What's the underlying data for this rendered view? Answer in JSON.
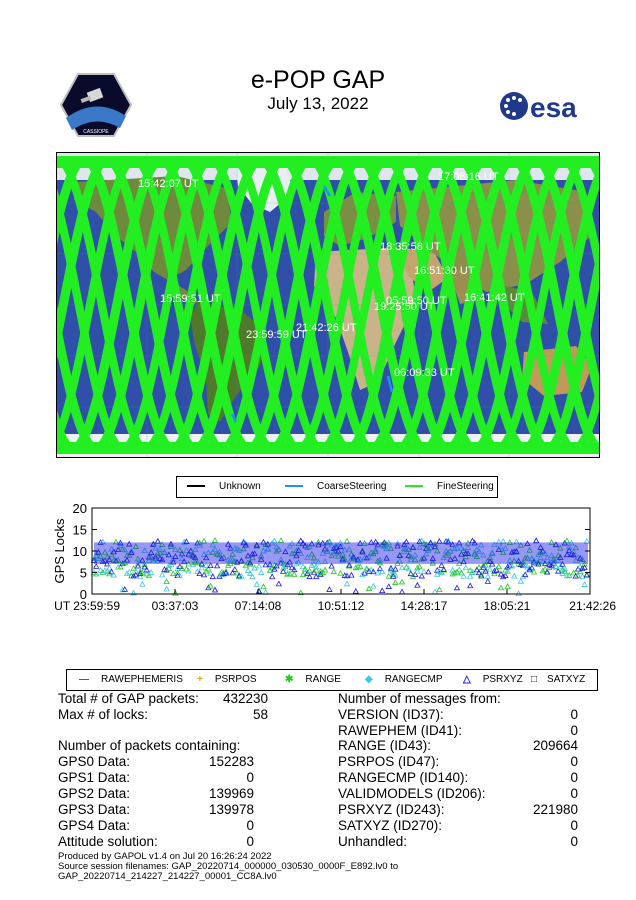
{
  "header": {
    "title": "e-POP GAP",
    "date": "July 13, 2022",
    "left_logo_text": "CASSIOPE",
    "right_logo_text": "esa"
  },
  "colors": {
    "fine": "#22ee22",
    "coarse": "#1e90ff",
    "unknown": "#000000",
    "gps_blue": "#1a1ae6",
    "gps_green": "#22cc22",
    "gps_cyan": "#40c8e0",
    "ocean": "#2f4fa8",
    "land": "#7f8f3a"
  },
  "map": {
    "time_labels": [
      "15:42:07 UT",
      "17:08:16 UT",
      "18:35:58 UT",
      "16:51:30 UT",
      "15:59:51 UT",
      "16:41:42 UT",
      "05:59:50 UT",
      "19:25:50 UT",
      "21:42:26 UT",
      "23:59:59 UT",
      "06:09:33 UT"
    ]
  },
  "legend_steering": [
    "Unknown",
    "CoarseSteering",
    "FineSteering"
  ],
  "chart_data": {
    "type": "scatter",
    "title": "",
    "ylabel": "GPS Locks",
    "xlabel": "",
    "x_tick_labels": [
      "UT 23:59:59",
      "03:37:03",
      "07:14:08",
      "10:51:12",
      "14:28:17",
      "18:05:21",
      "21:42:26"
    ],
    "y_ticks": [
      0,
      5,
      10,
      15,
      20
    ],
    "ylim": [
      0,
      20
    ],
    "series": [
      {
        "name": "RAWEPHEMERIS",
        "symbol": "line"
      },
      {
        "name": "PSRPOS",
        "symbol": "plus"
      },
      {
        "name": "RANGE",
        "symbol": "x"
      },
      {
        "name": "RANGECMP",
        "symbol": "diamond"
      },
      {
        "name": "PSRXYZ",
        "symbol": "triangle"
      },
      {
        "name": "SATXYZ",
        "symbol": "square"
      }
    ],
    "band": {
      "typical_low": 4,
      "typical_high": 12.5,
      "dips_to": 0
    }
  },
  "stats_left": {
    "total_label": "Total # of GAP packets:",
    "total_value": "432230",
    "maxlocks_label": "Max # of locks:",
    "maxlocks_value": "58",
    "containing_label": "Number of packets containing:",
    "rows": [
      {
        "label": "GPS0 Data:",
        "value": "152283"
      },
      {
        "label": "GPS1 Data:",
        "value": "0"
      },
      {
        "label": "GPS2 Data:",
        "value": "139969"
      },
      {
        "label": "GPS3 Data:",
        "value": "139978"
      },
      {
        "label": "GPS4 Data:",
        "value": "0"
      },
      {
        "label": "Attitude solution:",
        "value": "0"
      }
    ]
  },
  "stats_right": {
    "heading": "Number of messages from:",
    "rows": [
      {
        "label": "VERSION (ID37):",
        "value": "0"
      },
      {
        "label": "RAWEPHEM (ID41):",
        "value": "0"
      },
      {
        "label": "RANGE (ID43):",
        "value": "209664"
      },
      {
        "label": "PSRPOS (ID47):",
        "value": "0"
      },
      {
        "label": "RANGECMP (ID140):",
        "value": "0"
      },
      {
        "label": "VALIDMODELS (ID206):",
        "value": "0"
      },
      {
        "label": "PSRXYZ (ID243):",
        "value": "221980"
      },
      {
        "label": "SATXYZ (ID270):",
        "value": "0"
      },
      {
        "label": "Unhandled:",
        "value": "0"
      }
    ]
  },
  "footer": {
    "line1": "Produced by GAPOL v1.4 on Jul 20 16:26:24 2022",
    "line2": "Source session filenames: GAP_20220714_000000_030530_0000F_E892.lv0 to",
    "line3": "GAP_20220714_214227_214227_00001_CC8A.lv0"
  }
}
